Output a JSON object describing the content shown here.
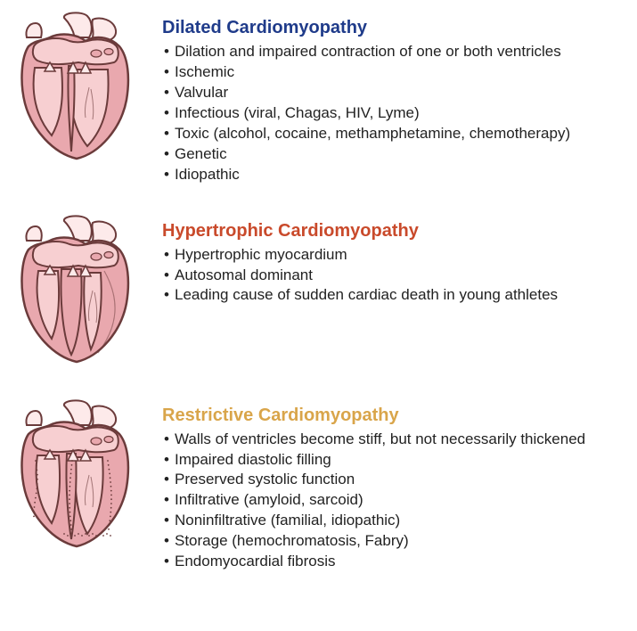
{
  "colors": {
    "heart_fill_light": "#f7cfd1",
    "heart_fill_mid": "#e9a8ae",
    "heart_stroke": "#6b3b3b",
    "vessel_light": "#fdeaea",
    "background": "#ffffff",
    "text": "#222222"
  },
  "typography": {
    "title_fontsize": 20,
    "title_weight": "bold",
    "bullet_fontsize": 17,
    "font_family": "Arial, Helvetica, sans-serif"
  },
  "sections": [
    {
      "id": "dilated",
      "title": "Dilated Cardiomyopathy",
      "title_color": "#1f3b8a",
      "heart_variant": "dilated",
      "bullets": [
        "Dilation and impaired contraction of one or both ventricles",
        "Ischemic",
        "Valvular",
        "Infectious (viral, Chagas, HIV, Lyme)",
        "Toxic (alcohol, cocaine, methamphetamine, chemotherapy)",
        "Genetic",
        "Idiopathic"
      ]
    },
    {
      "id": "hypertrophic",
      "title": "Hypertrophic Cardiomyopathy",
      "title_color": "#c94a2b",
      "heart_variant": "hypertrophic",
      "bullets": [
        "Hypertrophic myocardium",
        "Autosomal dominant",
        "Leading cause of sudden cardiac death in young athletes"
      ]
    },
    {
      "id": "restrictive",
      "title": "Restrictive Cardiomyopathy",
      "title_color": "#d9a54a",
      "heart_variant": "restrictive",
      "bullets": [
        "Walls of ventricles become stiff, but not necessarily thickened",
        "Impaired diastolic filling",
        "Preserved systolic function",
        "Infiltrative (amyloid, sarcoid)",
        "Noninfiltrative (familial, idiopathic)",
        "Storage (hemochromatosis, Fabry)",
        "Endomyocardial fibrosis"
      ]
    }
  ]
}
